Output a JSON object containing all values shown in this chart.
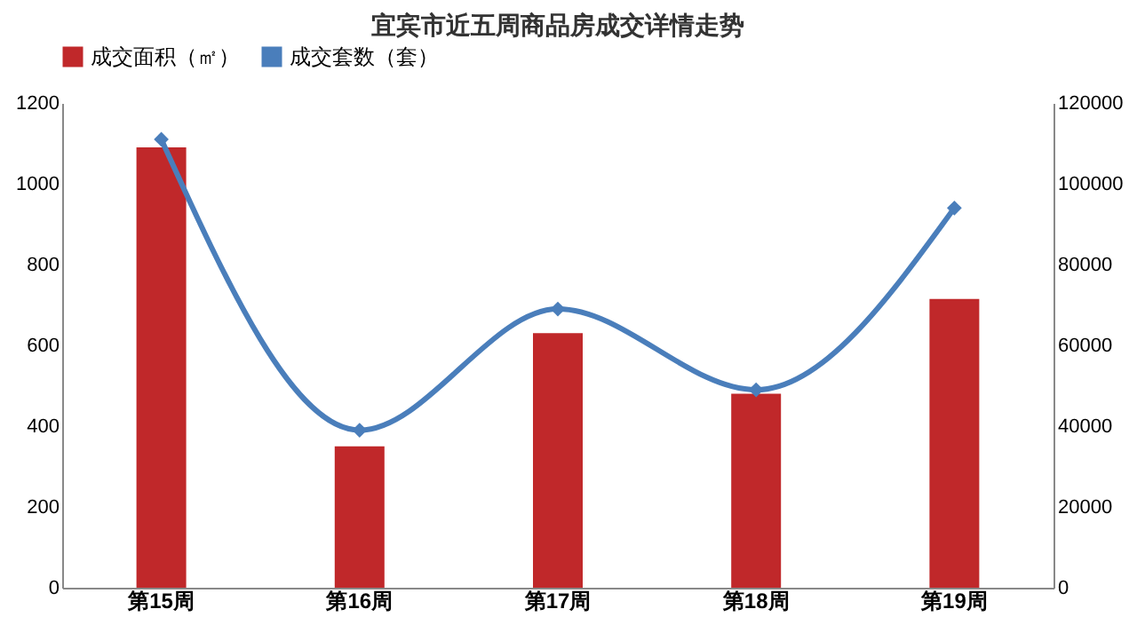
{
  "chart_data": {
    "type": "bar",
    "title": "宜宾市近五周商品房成交详情走势",
    "categories": [
      "第15周",
      "第16周",
      "第17周",
      "第18周",
      "第19周"
    ],
    "series": [
      {
        "name": "成交面积（㎡）",
        "axis": "y2",
        "color": "#c0282a",
        "values": [
          109000,
          35000,
          63000,
          48000,
          71500
        ]
      },
      {
        "name": "成交套数（套）",
        "type": "line",
        "axis": "y",
        "color": "#4a7ebb",
        "marker": "diamond",
        "values": [
          1110,
          390,
          690,
          490,
          940
        ]
      }
    ],
    "ylim": [
      0,
      1200
    ],
    "yticks": [
      0,
      200,
      400,
      600,
      800,
      1000,
      1200
    ],
    "y2lim": [
      0,
      120000
    ],
    "y2ticks": [
      0,
      20000,
      40000,
      60000,
      80000,
      100000,
      120000
    ],
    "legend": "top",
    "grid": false
  }
}
